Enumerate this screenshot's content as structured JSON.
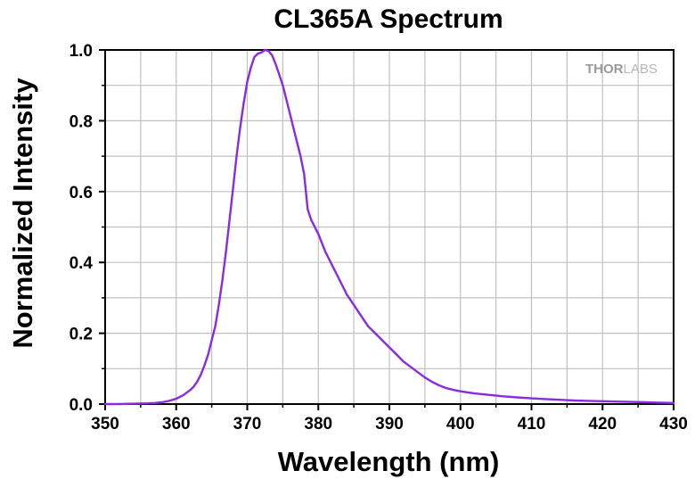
{
  "chart_data": {
    "type": "line",
    "title": "CL365A Spectrum",
    "xlabel": "Wavelength (nm)",
    "ylabel": "Normalized Intensity",
    "xlim": [
      350,
      430
    ],
    "ylim": [
      0,
      1.0
    ],
    "x_ticks": [
      "350",
      "360",
      "370",
      "380",
      "390",
      "400",
      "410",
      "420",
      "430"
    ],
    "y_ticks": [
      "0.0",
      "0.2",
      "0.4",
      "0.6",
      "0.8",
      "1.0"
    ],
    "grid": true,
    "line_color": "#8a2be2",
    "series": [
      {
        "x": [
          350,
          352,
          354,
          356,
          357,
          358,
          359,
          360,
          361,
          362,
          362.5,
          363,
          363.5,
          364,
          364.5,
          365,
          365.5,
          366,
          366.5,
          367,
          367.5,
          368,
          368.5,
          369,
          369.5,
          370,
          370.5,
          371,
          371.5,
          372,
          372.5,
          373,
          373.5,
          374,
          374.5,
          375,
          375.5,
          376,
          376.5,
          377,
          377.5,
          378,
          378.5,
          379,
          380,
          381,
          382,
          383,
          384,
          385,
          386,
          387,
          388,
          389,
          390,
          391,
          392,
          393,
          394,
          395,
          396,
          397,
          398,
          399,
          400,
          402,
          404,
          406,
          408,
          410,
          412,
          414,
          416,
          418,
          420,
          422,
          424,
          426,
          428,
          430
        ],
        "y": [
          0.0,
          0.0,
          0.001,
          0.002,
          0.003,
          0.005,
          0.009,
          0.015,
          0.025,
          0.04,
          0.05,
          0.065,
          0.085,
          0.11,
          0.14,
          0.18,
          0.22,
          0.28,
          0.35,
          0.43,
          0.52,
          0.61,
          0.7,
          0.78,
          0.85,
          0.91,
          0.95,
          0.98,
          0.99,
          0.993,
          1.0,
          0.997,
          0.985,
          0.96,
          0.93,
          0.9,
          0.86,
          0.82,
          0.78,
          0.74,
          0.7,
          0.65,
          0.55,
          0.52,
          0.48,
          0.43,
          0.39,
          0.35,
          0.31,
          0.28,
          0.25,
          0.22,
          0.2,
          0.18,
          0.16,
          0.14,
          0.12,
          0.105,
          0.09,
          0.075,
          0.063,
          0.053,
          0.045,
          0.04,
          0.036,
          0.03,
          0.026,
          0.022,
          0.019,
          0.016,
          0.014,
          0.012,
          0.01,
          0.009,
          0.008,
          0.007,
          0.006,
          0.005,
          0.004,
          0.003
        ]
      }
    ]
  },
  "logo": {
    "part1": "THOR",
    "part2": "LABS"
  }
}
